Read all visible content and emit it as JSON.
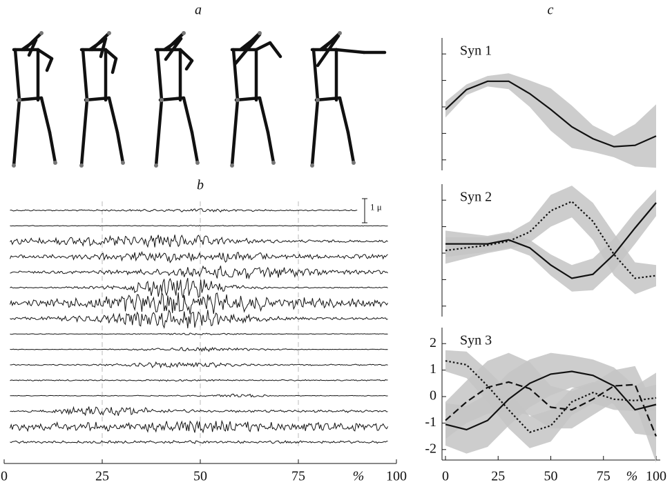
{
  "panel_labels": [
    "a",
    "b",
    "c"
  ],
  "chart_data": [
    {
      "type": "traces",
      "xlim": [
        0,
        100
      ],
      "xticks": [
        0,
        25,
        50,
        75,
        100
      ],
      "xlabel": "%",
      "grid_x": true,
      "scale_bar": {
        "value": 1,
        "label": "1 μ"
      },
      "x": [
        0,
        10,
        20,
        30,
        40,
        50,
        60,
        70,
        80,
        90,
        100
      ],
      "series": [
        {
          "color": "#111",
          "values": [
            0.02,
            0.02,
            0.02,
            0.03,
            0.04,
            0.06,
            0.04,
            0.02,
            0.02,
            0.02,
            0.02
          ]
        },
        {
          "color": "#111",
          "values": [
            0.01,
            0.01,
            0.01,
            0.01,
            0.01,
            0.02,
            0.01,
            0.01,
            0.01,
            0.01,
            0.01
          ]
        },
        {
          "color": "#111",
          "values": [
            0.1,
            0.1,
            0.14,
            0.18,
            0.21,
            0.18,
            0.1,
            0.05,
            0.04,
            0.04,
            0.04
          ]
        },
        {
          "color": "#111",
          "values": [
            0.07,
            0.07,
            0.1,
            0.14,
            0.18,
            0.21,
            0.18,
            0.1,
            0.07,
            0.07,
            0.07
          ]
        },
        {
          "color": "#111",
          "values": [
            0.04,
            0.04,
            0.05,
            0.07,
            0.1,
            0.18,
            0.28,
            0.18,
            0.1,
            0.07,
            0.07
          ]
        },
        {
          "color": "#111",
          "values": [
            0.02,
            0.02,
            0.04,
            0.07,
            0.32,
            0.35,
            0.07,
            0.02,
            0.02,
            0.02,
            0.02
          ]
        },
        {
          "color": "#111",
          "values": [
            0.1,
            0.1,
            0.21,
            0.28,
            0.35,
            0.35,
            0.28,
            0.21,
            0.18,
            0.14,
            0.1
          ]
        },
        {
          "color": "#111",
          "values": [
            0.04,
            0.05,
            0.1,
            0.18,
            0.28,
            0.32,
            0.14,
            0.07,
            0.04,
            0.04,
            0.04
          ]
        },
        {
          "color": "#111",
          "values": [
            0.01,
            0.01,
            0.01,
            0.01,
            0.02,
            0.03,
            0.02,
            0.01,
            0.01,
            0.01,
            0.01
          ]
        },
        {
          "color": "#111",
          "values": [
            0.01,
            0.01,
            0.01,
            0.02,
            0.05,
            0.07,
            0.04,
            0.02,
            0.01,
            0.01,
            0.01
          ]
        },
        {
          "color": "#111",
          "values": [
            0.02,
            0.02,
            0.02,
            0.04,
            0.1,
            0.1,
            0.04,
            0.02,
            0.02,
            0.02,
            0.02
          ]
        },
        {
          "color": "#111",
          "values": [
            0.02,
            0.02,
            0.02,
            0.02,
            0.03,
            0.03,
            0.02,
            0.02,
            0.02,
            0.02,
            0.02
          ]
        },
        {
          "color": "#111",
          "values": [
            0.01,
            0.01,
            0.01,
            0.01,
            0.02,
            0.02,
            0.07,
            0.01,
            0.01,
            0.01,
            0.01
          ]
        },
        {
          "color": "#111",
          "values": [
            0.02,
            0.04,
            0.14,
            0.18,
            0.07,
            0.04,
            0.04,
            0.04,
            0.04,
            0.04,
            0.02
          ]
        },
        {
          "color": "#111",
          "values": [
            0.14,
            0.14,
            0.14,
            0.14,
            0.18,
            0.21,
            0.18,
            0.14,
            0.14,
            0.14,
            0.1
          ]
        },
        {
          "color": "#111",
          "values": [
            0.04,
            0.04,
            0.04,
            0.04,
            0.05,
            0.05,
            0.04,
            0.04,
            0.04,
            0.04,
            0.04
          ]
        }
      ]
    },
    {
      "type": "line",
      "title": "Syn 1",
      "xlim": [
        0,
        100
      ],
      "ylim": [
        -2.5,
        2.5
      ],
      "yticks": [
        -2,
        -1,
        0,
        1,
        2
      ],
      "show_ytick_labels": false,
      "band_color": "#c4c4c4",
      "x": [
        0,
        10,
        20,
        30,
        40,
        50,
        60,
        70,
        80,
        90,
        100
      ],
      "series": [
        {
          "color": "#111",
          "dash": "solid",
          "values": [
            -0.1,
            0.65,
            0.97,
            0.97,
            0.5,
            -0.1,
            -0.75,
            -1.2,
            -1.5,
            -1.45,
            -1.1
          ],
          "band": [
            0.3,
            0.2,
            0.2,
            0.3,
            0.5,
            0.8,
            0.8,
            0.5,
            0.4,
            0.8,
            1.2
          ]
        }
      ]
    },
    {
      "type": "line",
      "title": "Syn 2",
      "xlim": [
        0,
        100
      ],
      "ylim": [
        -2.5,
        2.5
      ],
      "yticks": [
        -2,
        -1,
        0,
        1,
        2
      ],
      "show_ytick_labels": false,
      "band_color": "#c4c4c4",
      "x": [
        0,
        10,
        20,
        30,
        40,
        50,
        60,
        70,
        80,
        90,
        100
      ],
      "series": [
        {
          "color": "#111",
          "dash": "solid",
          "values": [
            0.35,
            0.35,
            0.35,
            0.5,
            0.2,
            -0.45,
            -0.95,
            -0.8,
            -0.05,
            0.95,
            1.9
          ],
          "band": [
            0.5,
            0.4,
            0.3,
            0.3,
            0.3,
            0.4,
            0.5,
            0.6,
            0.6,
            0.6,
            0.5
          ]
        },
        {
          "color": "#111",
          "dash": "dotted",
          "values": [
            0.1,
            0.2,
            0.3,
            0.45,
            0.8,
            1.6,
            1.95,
            1.2,
            -0.05,
            -0.95,
            -0.85
          ],
          "band": [
            0.5,
            0.4,
            0.3,
            0.3,
            0.4,
            0.6,
            0.6,
            0.7,
            0.8,
            0.6,
            0.4
          ]
        }
      ]
    },
    {
      "type": "line",
      "title": "Syn 3",
      "xlim": [
        0,
        100
      ],
      "ylim": [
        -2.5,
        2.5
      ],
      "yticks": [
        -2,
        -1,
        0,
        1,
        2
      ],
      "show_ytick_labels": true,
      "band_color": "#c4c4c4",
      "xticks": [
        0,
        25,
        50,
        75,
        100
      ],
      "xlabel": "%",
      "x": [
        0,
        10,
        20,
        30,
        40,
        50,
        60,
        70,
        80,
        90,
        100
      ],
      "series": [
        {
          "color": "#111",
          "dash": "solid",
          "values": [
            -1.05,
            -1.25,
            -0.9,
            -0.1,
            0.5,
            0.85,
            0.95,
            0.8,
            0.4,
            -0.5,
            -0.3
          ],
          "band": [
            0.8,
            0.9,
            1.0,
            1.0,
            0.9,
            0.8,
            0.6,
            0.6,
            0.7,
            0.9,
            1.2
          ]
        },
        {
          "color": "#111",
          "dash": "dashed",
          "values": [
            -0.9,
            -0.2,
            0.35,
            0.55,
            0.3,
            -0.4,
            -0.5,
            -0.1,
            0.4,
            0.45,
            -1.5
          ],
          "band": [
            0.7,
            0.8,
            1.0,
            1.1,
            1.0,
            0.8,
            0.7,
            0.6,
            0.6,
            0.7,
            1.0
          ]
        },
        {
          "color": "#111",
          "dash": "dotted",
          "values": [
            1.35,
            1.2,
            0.4,
            -0.5,
            -1.35,
            -1.1,
            -0.2,
            0.15,
            -0.1,
            -0.15,
            -0.05
          ],
          "band": [
            0.4,
            0.5,
            0.6,
            0.7,
            0.6,
            0.6,
            0.5,
            0.4,
            0.4,
            0.4,
            0.5
          ]
        }
      ]
    }
  ]
}
